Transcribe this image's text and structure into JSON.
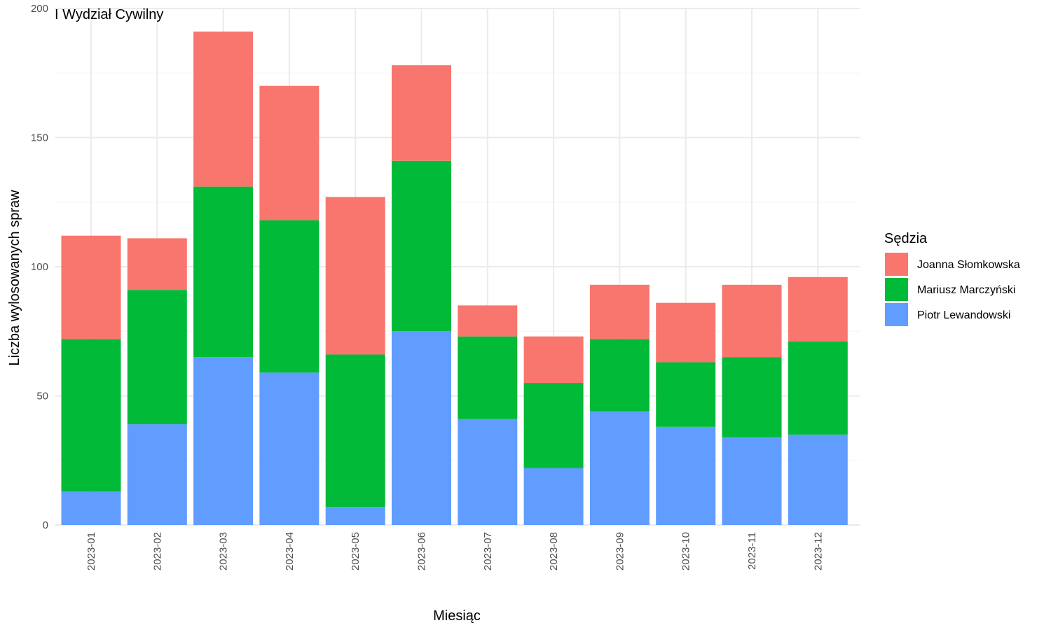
{
  "chart_data": {
    "type": "bar",
    "stacked": true,
    "title": "I Wydział Cywilny",
    "xlabel": "Miesiąc",
    "ylabel": "Liczba wylosowanych spraw",
    "ylim": [
      0,
      200
    ],
    "yticks": [
      0,
      50,
      100,
      150,
      200
    ],
    "grid": true,
    "legend_position": "right",
    "legend_title": "Sędzia",
    "categories": [
      "2023-01",
      "2023-02",
      "2023-03",
      "2023-04",
      "2023-05",
      "2023-06",
      "2023-07",
      "2023-08",
      "2023-09",
      "2023-10",
      "2023-11",
      "2023-12"
    ],
    "series": [
      {
        "name": "Piotr Lewandowski",
        "color": "#619CFF",
        "values": [
          13,
          39,
          65,
          59,
          7,
          75,
          41,
          22,
          44,
          38,
          34,
          35
        ]
      },
      {
        "name": "Mariusz Marczyński",
        "color": "#00BA38",
        "values": [
          59,
          52,
          66,
          59,
          59,
          66,
          32,
          33,
          28,
          25,
          31,
          36
        ]
      },
      {
        "name": "Joanna Słomkowska",
        "color": "#F8766D",
        "values": [
          40,
          20,
          60,
          52,
          61,
          37,
          12,
          18,
          21,
          23,
          28,
          25
        ]
      }
    ],
    "legend_order": [
      "Joanna Słomkowska",
      "Mariusz Marczyński",
      "Piotr Lewandowski"
    ]
  }
}
